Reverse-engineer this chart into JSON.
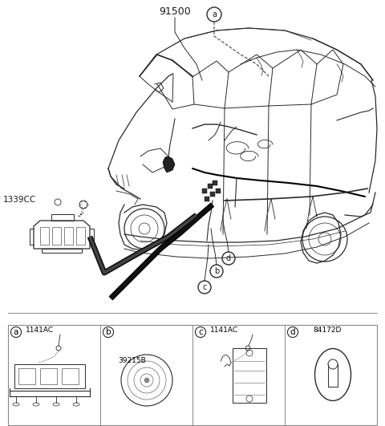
{
  "background_color": "#ffffff",
  "text_color": "#1a1a1a",
  "main_label": "91500",
  "side_label": "1339CC",
  "part_a_label": "1141AC",
  "part_b_label": "39215B",
  "part_c_label": "1141AC",
  "part_d_label": "84172D",
  "fig_width": 4.8,
  "fig_height": 5.31,
  "dpi": 100
}
